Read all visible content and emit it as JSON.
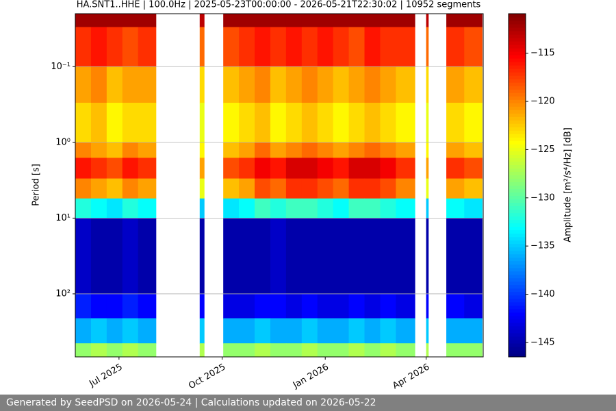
{
  "chart_data": {
    "type": "spectrogram",
    "title": "HA.SNT1..HHE | 100.0Hz | 2025-05-23T00:00:00 - 2026-05-21T22:30:02 | 10952 segments",
    "y_label": "Period [s]",
    "colorbar_label": "Amplitude [m²/s⁴/Hz] [dB]",
    "footer": "Generated by SeedPSD on 2026-05-24 | Calculations updated on 2026-05-22",
    "colormap": "jet",
    "y_log": true,
    "y_inverted": true,
    "grid": "y",
    "xlim": [
      "2025-05-23T00:00:00",
      "2026-05-21T22:30:02"
    ],
    "xticks": [
      {
        "value": "2025-07-01",
        "label": "Jul 2025"
      },
      {
        "value": "2025-10-01",
        "label": "Oct 2025"
      },
      {
        "value": "2026-01-01",
        "label": "Jan 2026"
      },
      {
        "value": "2026-04-01",
        "label": "Apr 2026"
      }
    ],
    "ylim": [
      0.02,
      680
    ],
    "yticks": [
      {
        "value": 0.1,
        "label": "10⁻¹"
      },
      {
        "value": 1,
        "label": "10⁰"
      },
      {
        "value": 10,
        "label": "10¹"
      },
      {
        "value": 100,
        "label": "10²"
      }
    ],
    "clim": [
      -146.5,
      -110.9
    ],
    "cticks": [
      {
        "value": -115,
        "label": "−115"
      },
      {
        "value": -120,
        "label": "−120"
      },
      {
        "value": -125,
        "label": "−125"
      },
      {
        "value": -130,
        "label": "−130"
      },
      {
        "value": -135,
        "label": "−135"
      },
      {
        "value": -140,
        "label": "−140"
      },
      {
        "value": -145,
        "label": "−145"
      }
    ],
    "x_edges": [
      "2025-05-23",
      "2025-06-06",
      "2025-06-20",
      "2025-07-04",
      "2025-07-18",
      "2025-08-03",
      "2025-09-11",
      "2025-09-15",
      "2025-10-02",
      "2025-10-16",
      "2025-10-30",
      "2025-11-13",
      "2025-11-27",
      "2025-12-11",
      "2025-12-25",
      "2026-01-08",
      "2026-01-22",
      "2026-02-05",
      "2026-02-19",
      "2026-03-05",
      "2026-03-22",
      "2026-04-01",
      "2026-04-03",
      "2026-04-19",
      "2026-05-05",
      "2026-05-21"
    ],
    "period_edges": [
      0.02,
      0.03,
      0.1,
      0.3,
      1,
      1.6,
      3,
      5.5,
      10,
      100,
      210,
      450,
      680
    ],
    "values": [
      [
        -112,
        -112,
        -112,
        -112,
        -112,
        null,
        -113,
        null,
        -112,
        -112,
        -112,
        -112,
        -112,
        -112,
        -112,
        -112,
        -112,
        -112,
        -112,
        -112,
        null,
        -113,
        null,
        -112,
        -112
      ],
      [
        -117,
        -116,
        -117,
        -118,
        -117,
        null,
        -119,
        null,
        -118,
        -117,
        -116,
        -117,
        -116,
        -117,
        -116,
        -117,
        -118,
        -116,
        -117,
        -117,
        null,
        -119,
        null,
        -117,
        -118
      ],
      [
        -121,
        -120,
        -122,
        -121,
        -121,
        null,
        -123,
        null,
        -122,
        -121,
        -120,
        -122,
        -121,
        -120,
        -121,
        -122,
        -121,
        -120,
        -121,
        -122,
        null,
        -123,
        null,
        -121,
        -122
      ],
      [
        -123,
        -122,
        -124,
        -123,
        -123,
        null,
        -125,
        null,
        -124,
        -123,
        -122,
        -124,
        -123,
        -122,
        -123,
        -124,
        -123,
        -122,
        -123,
        -124,
        null,
        -125,
        null,
        -123,
        -124
      ],
      [
        -120,
        -121,
        -122,
        -120,
        -121,
        null,
        -124,
        null,
        -122,
        -121,
        -119,
        -121,
        -120,
        -119,
        -120,
        -121,
        -120,
        -119,
        -120,
        -121,
        null,
        -124,
        null,
        -121,
        -122
      ],
      [
        -116,
        -117,
        -118,
        -116,
        -117,
        null,
        -121,
        null,
        -118,
        -117,
        -115,
        -116,
        -114,
        -114,
        -115,
        -116,
        -114,
        -114,
        -115,
        -117,
        null,
        -121,
        null,
        -117,
        -118
      ],
      [
        -120,
        -121,
        -122,
        -120,
        -121,
        null,
        -125,
        null,
        -122,
        -121,
        -118,
        -119,
        -117,
        -117,
        -118,
        -119,
        -117,
        -117,
        -118,
        -120,
        null,
        -125,
        null,
        -121,
        -122
      ],
      [
        -132,
        -133,
        -134,
        -132,
        -133,
        null,
        -135,
        null,
        -134,
        -133,
        -131,
        -132,
        -131,
        -131,
        -132,
        -133,
        -131,
        -131,
        -132,
        -133,
        null,
        -135,
        null,
        -133,
        -134
      ],
      [
        -144,
        -145,
        -145,
        -144,
        -145,
        null,
        -145,
        null,
        -145,
        -145,
        -145,
        -144,
        -145,
        -145,
        -145,
        -145,
        -145,
        -145,
        -145,
        -145,
        null,
        -145,
        null,
        -145,
        -145
      ],
      [
        -141,
        -142,
        -142,
        -141,
        -142,
        null,
        -142,
        null,
        -143,
        -143,
        -142,
        -142,
        -143,
        -142,
        -143,
        -143,
        -142,
        -143,
        -142,
        -143,
        null,
        -142,
        null,
        -142,
        -143
      ],
      [
        -136,
        -135,
        -136,
        -135,
        -136,
        null,
        -135,
        null,
        -136,
        -136,
        -135,
        -136,
        -136,
        -135,
        -136,
        -136,
        -135,
        -136,
        -135,
        -136,
        null,
        -135,
        null,
        -136,
        -136
      ],
      [
        -128,
        -127,
        -128,
        -127,
        -128,
        null,
        -127,
        null,
        -128,
        -128,
        -127,
        -128,
        -128,
        -127,
        -128,
        -128,
        -127,
        -128,
        -127,
        -128,
        null,
        -127,
        null,
        -128,
        -128
      ]
    ]
  }
}
